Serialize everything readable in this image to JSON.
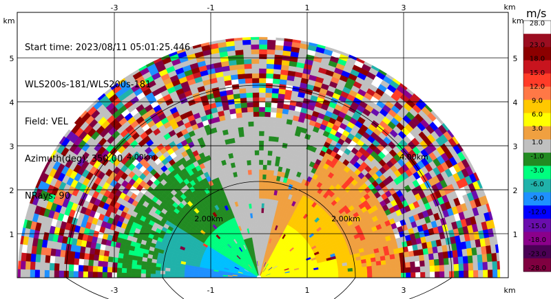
{
  "info": {
    "start_time": "Start time: 2023/08/11 05:01:25.446",
    "instrument": "WLS200s-181/WLS200s-181",
    "field": "Field: VEL",
    "azimuth": "Azimuth(deg): 350.00",
    "nrays": "NRays: 90"
  },
  "axes": {
    "x_unit": "km",
    "y_unit": "km",
    "x_ticks": [
      "-3",
      "-1",
      "1",
      "3"
    ],
    "y_ticks": [
      "1",
      "2",
      "3",
      "4",
      "5"
    ],
    "range_ring_labels": [
      "2.00km",
      "2.00km",
      "4.00km",
      "4.00km"
    ]
  },
  "colorbar": {
    "unit": "m/s",
    "labels": [
      "28.0",
      "23.0",
      "18.0",
      "15.0",
      "12.0",
      "9.0",
      "6.0",
      "3.0",
      "1.0",
      "-1.0",
      "-3.0",
      "-6.0",
      "-9.0",
      "-12.0",
      "-15.0",
      "-18.0",
      "-23.0",
      "-28.0"
    ],
    "colors": [
      "#ffffff",
      "#9b0d20",
      "#8c0000",
      "#c8141e",
      "#ff3c28",
      "#ff7846",
      "#ffc800",
      "#ffff00",
      "#f0a040",
      "#c0c0c0",
      "#228b22",
      "#00ff7f",
      "#20b2aa",
      "#1e90ff",
      "#0000ff",
      "#6a0dad",
      "#8b008b",
      "#4b0055",
      "#800040"
    ]
  },
  "chart_data": {
    "type": "heatmap",
    "title": "",
    "field": "VEL",
    "units": "m/s",
    "xlabel": "km",
    "ylabel": "km",
    "xlim": [
      -4,
      4
    ],
    "ylim": [
      0,
      5.8
    ],
    "range_rings_km": [
      2,
      4
    ],
    "max_range_km": 5,
    "colorbar_range": [
      -28,
      28
    ]
  }
}
